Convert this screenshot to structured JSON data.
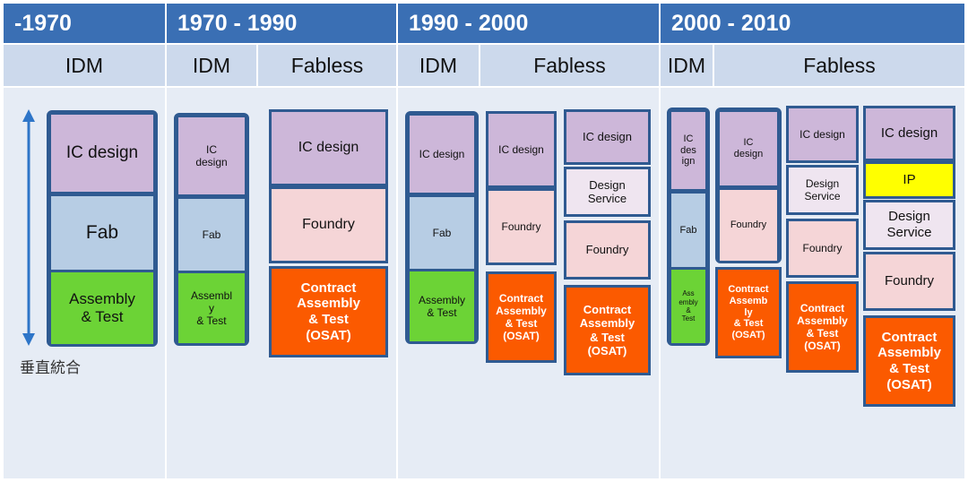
{
  "eras": [
    "-1970",
    "1970 - 1990",
    "1990 - 2000",
    "2000 - 2010"
  ],
  "models": {
    "idm": "IDM",
    "fabless": "Fabless"
  },
  "arrow_label": "垂直統合",
  "e1": {
    "ic": "IC design",
    "fab": "Fab",
    "at": "Assembly\n& Test"
  },
  "e2": {
    "ic": "IC\ndesign",
    "fab": "Fab",
    "at": "Assembl\ny\n& Test",
    "f_ic": "IC design",
    "f_foundry": "Foundry",
    "f_osat": "Contract\nAssembly\n& Test\n(OSAT)"
  },
  "e3": {
    "ic": "IC design",
    "fab": "Fab",
    "at": "Assembly\n& Test",
    "a_ic": "IC design",
    "a_foundry": "Foundry",
    "a_osat": "Contract\nAssembly\n& Test\n(OSAT)",
    "b_ic": "IC design",
    "b_ds": "Design\nService",
    "b_foundry": "Foundry",
    "b_osat": "Contract\nAssembly\n& Test\n(OSAT)"
  },
  "e4": {
    "ic": "IC\ndes\nign",
    "fab": "Fab",
    "at": "Ass\nembly\n&\nTest",
    "a_ic": "IC\ndesign",
    "a_foundry": "Foundry",
    "a_osat": "Contract\nAssemb\nly\n& Test\n(OSAT)",
    "b_ic": "IC design",
    "b_ds": "Design\nService",
    "b_foundry": "Foundry",
    "b_osat": "Contract\nAssembly\n& Test\n(OSAT)",
    "c_ic": "IC design",
    "c_ip": "IP",
    "c_ds": "Design\nService",
    "c_foundry": "Foundry",
    "c_osat": "Contract\nAssembly\n& Test\n(OSAT)"
  }
}
